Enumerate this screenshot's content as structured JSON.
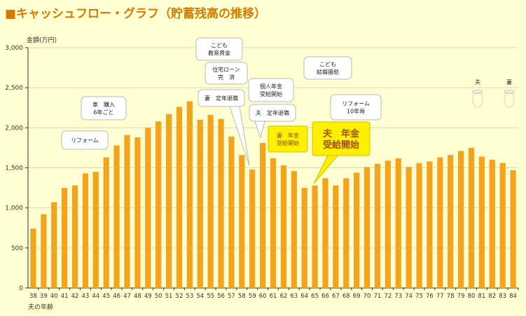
{
  "title": "■キャッシュフロー・グラフ（貯蓄残高の推移）",
  "colors": {
    "bar": "#F5A21C",
    "background": "#FFFFD2",
    "title": "#D37B00",
    "callout_fill": "#FFF000"
  },
  "chart_data": {
    "type": "bar",
    "ylabel": "金額(万円)",
    "xlabel": "夫の年齢",
    "ylim": [
      0,
      3000
    ],
    "yticks": [
      0,
      500,
      1000,
      1500,
      2000,
      2500,
      3000
    ],
    "ytick_labels": [
      "0",
      "500",
      "1,000",
      "1,500",
      "2,000",
      "2,500",
      "3,000"
    ],
    "categories": [
      "38",
      "39",
      "40",
      "41",
      "42",
      "43",
      "44",
      "45",
      "46",
      "47",
      "48",
      "49",
      "50",
      "51",
      "52",
      "53",
      "54",
      "55",
      "56",
      "57",
      "58",
      "59",
      "60",
      "61",
      "62",
      "63",
      "64",
      "65",
      "66",
      "67",
      "68",
      "69",
      "70",
      "71",
      "72",
      "73",
      "74",
      "75",
      "76",
      "77",
      "78",
      "79",
      "80",
      "81",
      "82",
      "83",
      "84"
    ],
    "values": [
      740,
      920,
      1070,
      1250,
      1280,
      1430,
      1450,
      1630,
      1780,
      1910,
      1880,
      2000,
      2080,
      2170,
      2260,
      2330,
      2100,
      2160,
      2110,
      1890,
      1660,
      1480,
      1810,
      1620,
      1530,
      1460,
      1250,
      1280,
      1370,
      1280,
      1370,
      1440,
      1510,
      1550,
      1590,
      1620,
      1510,
      1560,
      1580,
      1630,
      1660,
      1710,
      1750,
      1640,
      1600,
      1560,
      1470
    ],
    "annotations": [
      {
        "lines": [
          "こども",
          "教育資金"
        ],
        "style": "box"
      },
      {
        "lines": [
          "住宅ローン",
          "完　済"
        ],
        "style": "box"
      },
      {
        "lines": [
          "個人年金",
          "受給開始"
        ],
        "style": "box"
      },
      {
        "lines": [
          "妻　定年退職"
        ],
        "style": "box"
      },
      {
        "lines": [
          "夫　定年退職"
        ],
        "style": "box"
      },
      {
        "lines": [
          "車　購入",
          "6年ごと"
        ],
        "style": "box"
      },
      {
        "lines": [
          "リフォーム"
        ],
        "style": "box"
      },
      {
        "lines": [
          "こども",
          "結婚援助"
        ],
        "style": "box"
      },
      {
        "lines": [
          "リフォーム",
          "10年毎"
        ],
        "style": "box"
      },
      {
        "lines": [
          "妻　年金",
          "受給開始"
        ],
        "style": "yellow"
      },
      {
        "lines": [
          "夫　年金",
          "受給開始"
        ],
        "style": "yellow-big"
      }
    ],
    "markers": [
      {
        "label": "夫"
      },
      {
        "label": "妻"
      }
    ]
  }
}
